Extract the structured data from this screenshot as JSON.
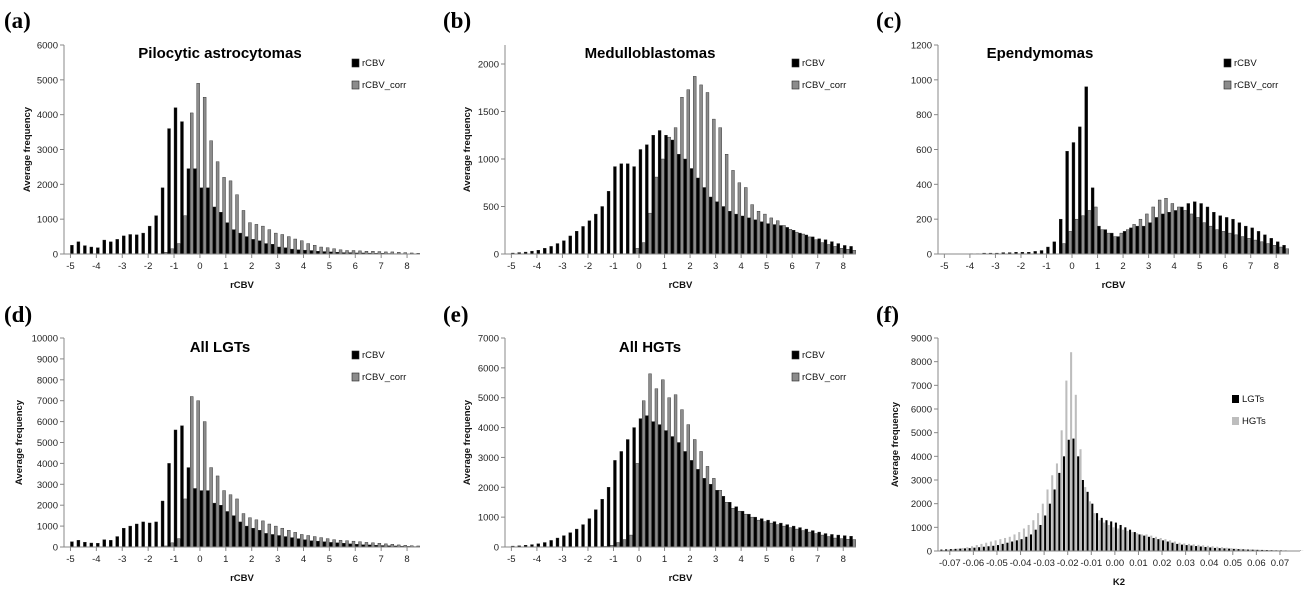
{
  "chart_data": [
    {
      "panel": "(a)",
      "title": "Pilocytic astrocytomas",
      "type": "bar",
      "xlabel": "rCBV",
      "ylabel": "Average frequency",
      "ylim": [
        0,
        6000
      ],
      "yticks": [
        0,
        1000,
        2000,
        3000,
        4000,
        5000,
        6000
      ],
      "xlim": [
        -5.25,
        8.5
      ],
      "xticks": [
        -5,
        -4,
        -3,
        -2,
        -1,
        0,
        1,
        2,
        3,
        4,
        5,
        6,
        7,
        8
      ],
      "legend_position": "top-right",
      "bin_start": -5.0,
      "bin_width": 0.25,
      "series": [
        {
          "name": "rCBV",
          "color": "#000000",
          "values": [
            250,
            350,
            240,
            200,
            180,
            400,
            350,
            420,
            520,
            560,
            550,
            600,
            800,
            1100,
            1900,
            3600,
            4200,
            3800,
            2450,
            2450,
            1900,
            1900,
            1350,
            1200,
            900,
            700,
            600,
            500,
            420,
            380,
            300,
            280,
            200,
            180,
            140,
            120,
            110,
            100,
            80,
            70,
            60,
            50,
            40,
            40,
            30,
            30,
            25,
            20,
            20,
            15,
            10,
            10,
            5,
            5
          ]
        },
        {
          "name": "rCBV_corr",
          "color": "#8c8c8c",
          "values": [
            0,
            0,
            0,
            0,
            0,
            0,
            0,
            0,
            0,
            0,
            0,
            0,
            0,
            0,
            50,
            150,
            300,
            1100,
            4050,
            4900,
            4500,
            3250,
            2650,
            2200,
            2100,
            1700,
            1250,
            900,
            850,
            800,
            700,
            600,
            560,
            500,
            430,
            380,
            300,
            250,
            200,
            180,
            150,
            120,
            100,
            100,
            90,
            80,
            80,
            70,
            60,
            60,
            50,
            40,
            30,
            20
          ]
        }
      ]
    },
    {
      "panel": "(b)",
      "title": "Medulloblastomas",
      "type": "bar",
      "xlabel": "rCBV",
      "ylabel": "Average frequency",
      "ylim": [
        0,
        2200
      ],
      "yticks": [
        0,
        500,
        1000,
        1500,
        2000
      ],
      "xlim": [
        -5.25,
        8.5
      ],
      "xticks": [
        -5,
        -4,
        -3,
        -2,
        -1,
        0,
        1,
        2,
        3,
        4,
        5,
        6,
        7,
        8
      ],
      "legend_position": "top-right",
      "bin_start": -5.0,
      "bin_width": 0.25,
      "series": [
        {
          "name": "rCBV",
          "color": "#000000",
          "values": [
            10,
            15,
            20,
            30,
            40,
            60,
            80,
            110,
            140,
            190,
            240,
            290,
            350,
            420,
            500,
            660,
            920,
            950,
            950,
            920,
            1100,
            1150,
            1250,
            1300,
            1250,
            1200,
            1050,
            1000,
            900,
            800,
            700,
            600,
            550,
            500,
            450,
            420,
            400,
            380,
            360,
            340,
            320,
            310,
            300,
            280,
            250,
            220,
            200,
            180,
            160,
            150,
            130,
            110,
            90,
            80
          ]
        },
        {
          "name": "rCBV_corr",
          "color": "#8c8c8c",
          "values": [
            0,
            0,
            0,
            0,
            0,
            0,
            0,
            0,
            0,
            0,
            0,
            0,
            0,
            0,
            0,
            0,
            0,
            0,
            0,
            60,
            120,
            430,
            810,
            1000,
            1230,
            1330,
            1650,
            1730,
            1870,
            1780,
            1700,
            1420,
            1330,
            1050,
            880,
            750,
            700,
            520,
            450,
            420,
            380,
            350,
            300,
            260,
            230,
            210,
            180,
            150,
            120,
            100,
            80,
            60,
            50,
            40
          ]
        }
      ]
    },
    {
      "panel": "(c)",
      "title": "Ependymomas",
      "type": "bar",
      "xlabel": "rCBV",
      "ylabel": "",
      "ylim": [
        0,
        1200
      ],
      "yticks": [
        0,
        200,
        400,
        600,
        800,
        1000,
        1200
      ],
      "xlim": [
        -5.25,
        8.5
      ],
      "xticks": [
        -5,
        -4,
        -3,
        -2,
        -1,
        0,
        1,
        2,
        3,
        4,
        5,
        6,
        7,
        8
      ],
      "legend_position": "top-right",
      "bin_start": -5.0,
      "bin_width": 0.25,
      "series": [
        {
          "name": "rCBV",
          "color": "#000000",
          "values": [
            0,
            0,
            0,
            0,
            2,
            2,
            5,
            5,
            5,
            8,
            8,
            10,
            10,
            10,
            15,
            20,
            40,
            70,
            200,
            590,
            640,
            730,
            960,
            380,
            160,
            140,
            120,
            100,
            130,
            150,
            160,
            160,
            180,
            210,
            230,
            240,
            250,
            270,
            290,
            300,
            290,
            270,
            240,
            220,
            210,
            200,
            180,
            160,
            150,
            130,
            110,
            90,
            70,
            50
          ]
        },
        {
          "name": "rCBV_corr",
          "color": "#8c8c8c",
          "values": [
            0,
            0,
            0,
            0,
            0,
            0,
            0,
            0,
            0,
            0,
            0,
            0,
            0,
            0,
            0,
            0,
            0,
            0,
            60,
            130,
            200,
            220,
            250,
            270,
            140,
            120,
            100,
            120,
            140,
            170,
            200,
            230,
            270,
            310,
            320,
            290,
            270,
            250,
            230,
            210,
            180,
            160,
            140,
            130,
            120,
            110,
            100,
            90,
            80,
            70,
            60,
            50,
            40,
            30
          ]
        }
      ]
    },
    {
      "panel": "(d)",
      "title": "All LGTs",
      "type": "bar",
      "xlabel": "rCBV",
      "ylabel": "Average frequency",
      "ylim": [
        0,
        10000
      ],
      "yticks": [
        0,
        1000,
        2000,
        3000,
        4000,
        5000,
        6000,
        7000,
        8000,
        9000,
        10000
      ],
      "xlim": [
        -5.25,
        8.5
      ],
      "xticks": [
        -5,
        -4,
        -3,
        -2,
        -1,
        0,
        1,
        2,
        3,
        4,
        5,
        6,
        7,
        8
      ],
      "legend_position": "top-right",
      "bin_start": -5.0,
      "bin_width": 0.25,
      "series": [
        {
          "name": "rCBV",
          "color": "#000000",
          "values": [
            250,
            320,
            230,
            190,
            180,
            350,
            320,
            500,
            900,
            1000,
            1100,
            1200,
            1150,
            1200,
            2200,
            4000,
            5600,
            5800,
            3800,
            2800,
            2700,
            2700,
            2100,
            2000,
            1700,
            1500,
            1200,
            1000,
            900,
            800,
            650,
            600,
            550,
            500,
            450,
            400,
            350,
            300,
            280,
            250,
            220,
            200,
            180,
            150,
            130,
            110,
            100,
            80,
            70,
            60,
            50,
            40,
            30,
            20
          ]
        },
        {
          "name": "rCBV_corr",
          "color": "#8c8c8c",
          "values": [
            0,
            0,
            0,
            0,
            0,
            0,
            0,
            0,
            0,
            0,
            0,
            0,
            0,
            0,
            50,
            200,
            400,
            2300,
            7200,
            7000,
            6000,
            3800,
            3400,
            2700,
            2500,
            2300,
            1600,
            1400,
            1300,
            1250,
            1100,
            1000,
            900,
            800,
            700,
            600,
            550,
            500,
            450,
            400,
            350,
            320,
            300,
            280,
            250,
            220,
            200,
            180,
            150,
            130,
            100,
            80,
            60,
            50
          ]
        }
      ]
    },
    {
      "panel": "(e)",
      "title": "All HGTs",
      "type": "bar",
      "xlabel": "rCBV",
      "ylabel": "Average frequency",
      "ylim": [
        0,
        7000
      ],
      "yticks": [
        0,
        1000,
        2000,
        3000,
        4000,
        5000,
        6000,
        7000
      ],
      "xlim": [
        -5.25,
        8.5
      ],
      "xticks": [
        -5,
        -4,
        -3,
        -2,
        -1,
        0,
        1,
        2,
        3,
        4,
        5,
        6,
        7,
        8
      ],
      "legend_position": "top-right",
      "bin_start": -5.0,
      "bin_width": 0.25,
      "series": [
        {
          "name": "rCBV",
          "color": "#000000",
          "values": [
            30,
            40,
            60,
            80,
            110,
            150,
            220,
            300,
            380,
            480,
            600,
            750,
            950,
            1250,
            1600,
            2000,
            2900,
            3200,
            3600,
            4000,
            4300,
            4400,
            4200,
            4100,
            3900,
            3700,
            3500,
            3200,
            2900,
            2600,
            2300,
            2100,
            1900,
            1700,
            1500,
            1350,
            1200,
            1100,
            1000,
            950,
            900,
            850,
            800,
            750,
            700,
            650,
            600,
            550,
            500,
            450,
            420,
            400,
            380,
            360
          ]
        },
        {
          "name": "rCBV_corr",
          "color": "#8c8c8c",
          "values": [
            0,
            0,
            0,
            0,
            0,
            0,
            0,
            0,
            0,
            0,
            0,
            0,
            0,
            0,
            20,
            60,
            150,
            250,
            400,
            2800,
            4900,
            5800,
            5300,
            5600,
            5000,
            5100,
            4600,
            4100,
            3600,
            3200,
            2700,
            2300,
            1900,
            1500,
            1300,
            1200,
            1100,
            1000,
            900,
            850,
            800,
            750,
            700,
            650,
            600,
            550,
            500,
            450,
            400,
            350,
            300,
            280,
            260,
            250
          ]
        }
      ]
    },
    {
      "panel": "(f)",
      "title": "",
      "type": "bar",
      "xlabel": "K2",
      "ylabel": "Average frequency",
      "ylim": [
        0,
        9000
      ],
      "yticks": [
        0,
        1000,
        2000,
        3000,
        4000,
        5000,
        6000,
        7000,
        8000,
        9000
      ],
      "xlim": [
        -0.075,
        0.0785
      ],
      "xticks": [
        -0.07,
        -0.06,
        -0.05,
        -0.04,
        -0.03,
        -0.02,
        -0.01,
        0.0,
        0.01,
        0.02,
        0.03,
        0.04,
        0.05,
        0.06,
        0.07
      ],
      "xtick_labels": [
        "-0.07",
        "-0.06",
        "-0.05",
        "-0.04",
        "-0.03",
        "-0.02",
        "-0.01",
        "0.00",
        "0.01",
        "0.02",
        "0.03",
        "0.04",
        "0.05",
        "0.06",
        "0.07"
      ],
      "legend_position": "right",
      "bin_start": -0.074,
      "bin_width": 0.002,
      "series": [
        {
          "name": "LGTs",
          "color": "#000000",
          "values": [
            60,
            70,
            80,
            90,
            100,
            110,
            120,
            140,
            160,
            180,
            200,
            220,
            250,
            300,
            350,
            400,
            450,
            500,
            600,
            700,
            900,
            1100,
            1500,
            2000,
            2600,
            3300,
            4000,
            4700,
            4750,
            4000,
            3000,
            2500,
            2000,
            1600,
            1400,
            1300,
            1250,
            1200,
            1100,
            1000,
            900,
            800,
            700,
            650,
            600,
            550,
            500,
            450,
            400,
            350,
            300,
            270,
            250,
            230,
            210,
            190,
            170,
            150,
            130,
            120,
            110,
            100,
            90,
            80,
            70,
            60,
            55,
            50,
            45,
            40,
            35,
            30,
            30,
            25,
            20,
            20,
            15
          ]
        },
        {
          "name": "HGTs",
          "color": "#bdbdbd",
          "values": [
            40,
            60,
            80,
            100,
            130,
            160,
            200,
            250,
            300,
            350,
            400,
            450,
            500,
            550,
            600,
            700,
            800,
            950,
            1100,
            1300,
            1600,
            2000,
            2600,
            3200,
            3700,
            5100,
            7200,
            8400,
            6600,
            4300,
            2700,
            2100,
            1600,
            1300,
            1200,
            1100,
            1000,
            950,
            900,
            850,
            800,
            750,
            700,
            700,
            650,
            600,
            550,
            500,
            450,
            400,
            350,
            320,
            300,
            280,
            260,
            240,
            220,
            200,
            180,
            160,
            140,
            120,
            100,
            90,
            80,
            70,
            60,
            50,
            45,
            40,
            35,
            30,
            25,
            20,
            20,
            15,
            10
          ]
        }
      ]
    }
  ]
}
